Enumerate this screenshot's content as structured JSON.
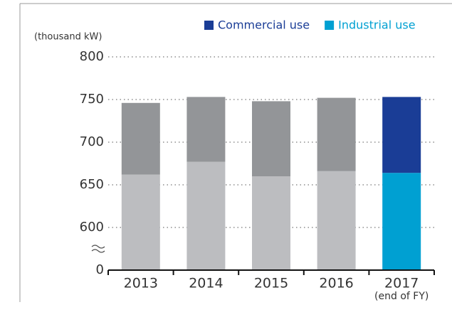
{
  "chart_data": {
    "type": "stacked_bar",
    "y_label": "(thousand kW)",
    "categories": [
      "2013",
      "2014",
      "2015",
      "2016",
      "2017"
    ],
    "category_sublabels": [
      null,
      null,
      null,
      null,
      "(end of FY)"
    ],
    "series": [
      {
        "name": "Industrial use",
        "color": "#00a0d2",
        "colors": [
          "#bcbdc0",
          "#bcbdc0",
          "#bcbdc0",
          "#bcbdc0",
          "#00a0d2"
        ],
        "values": [
          662,
          677,
          660,
          666,
          664
        ]
      },
      {
        "name": "Commercial use",
        "color": "#1a3d96",
        "colors": [
          "#939598",
          "#939598",
          "#939598",
          "#939598",
          "#1a3d96"
        ],
        "values": [
          84,
          76,
          88,
          86,
          89
        ]
      }
    ],
    "ylim": [
      0,
      800
    ],
    "yticks": [
      0,
      600,
      650,
      700,
      750,
      800
    ],
    "y_axis_break": true,
    "grid": true,
    "legend": "top-right"
  }
}
